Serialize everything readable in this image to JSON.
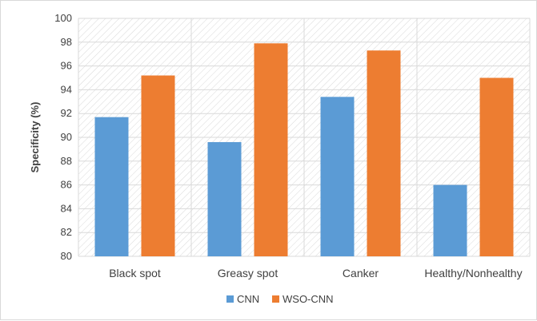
{
  "chart_data": {
    "type": "bar",
    "title": "",
    "xlabel": "",
    "ylabel": "Specificity (%)",
    "ylim": [
      80,
      100
    ],
    "yticks": [
      "80",
      "82",
      "84",
      "86",
      "88",
      "90",
      "92",
      "94",
      "96",
      "98",
      "100"
    ],
    "categories": [
      "Black spot",
      "Greasy spot",
      "Canker",
      "Healthy/Nonhealthy"
    ],
    "series": [
      {
        "name": "CNN",
        "color": "#5b9bd5",
        "values": [
          91.7,
          89.6,
          93.4,
          86.0
        ]
      },
      {
        "name": "WSO-CNN",
        "color": "#ed7d31",
        "values": [
          95.2,
          97.9,
          97.3,
          95.0
        ]
      }
    ],
    "grid": true,
    "plot_background": "hatched",
    "legend": "bottom-center"
  }
}
